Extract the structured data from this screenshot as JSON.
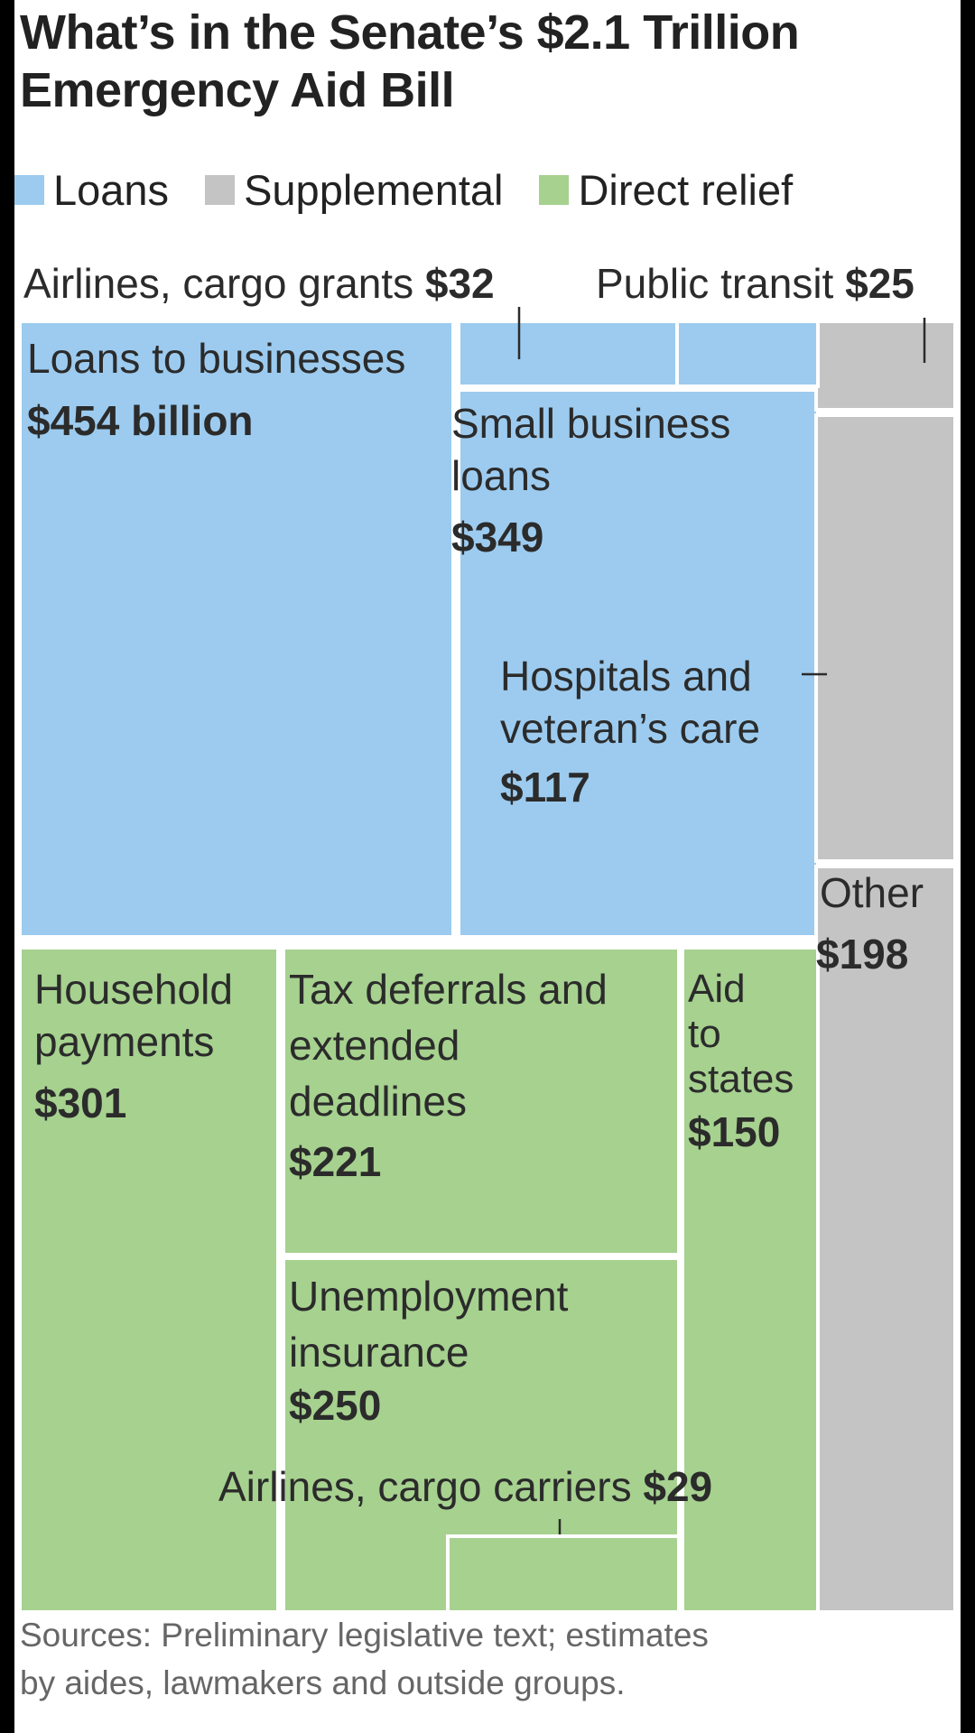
{
  "title_line1": "What’s in the Senate’s $2.1 Trillion",
  "title_line2": "Emergency Aid Bill",
  "legend": [
    {
      "label": "Loans",
      "color": "#9ccbef"
    },
    {
      "label": "Supplemental",
      "color": "#c4c4c4"
    },
    {
      "label": "Direct relief",
      "color": "#a6d18f"
    }
  ],
  "source_line1": "Sources: Preliminary legislative text; estimates",
  "source_line2": "by aides, lawmakers and outside groups.",
  "chart_data": {
    "type": "treemap",
    "title": "What’s in the Senate’s $2.1 Trillion Emergency Aid Bill",
    "unit": "billion dollars",
    "items": [
      {
        "name": "Loans to businesses",
        "value": 454,
        "category": "Loans",
        "label_lines": [
          "Loans to businesses"
        ],
        "value_label": "$454 billion"
      },
      {
        "name": "Small business loans",
        "value": 349,
        "category": "Loans",
        "label_lines": [
          "Small business",
          "loans"
        ],
        "value_label": "$349"
      },
      {
        "name": "Airlines, cargo grants",
        "value": 32,
        "category": "Loans",
        "label_lines": [
          "Airlines, cargo grants"
        ],
        "value_label": "$32"
      },
      {
        "name": "Public transit",
        "value": 25,
        "category": "Supplemental",
        "label_lines": [
          "Public transit"
        ],
        "value_label": "$25"
      },
      {
        "name": "Hospitals and veteran’s care",
        "value": 117,
        "category": "Supplemental",
        "label_lines": [
          "Hospitals and",
          "veteran’s care"
        ],
        "value_label": "$117"
      },
      {
        "name": "Other",
        "value": 198,
        "category": "Supplemental",
        "label_lines": [
          "Other"
        ],
        "value_label": "$198"
      },
      {
        "name": "Household payments",
        "value": 301,
        "category": "Direct relief",
        "label_lines": [
          "Household",
          "payments"
        ],
        "value_label": "$301"
      },
      {
        "name": "Tax deferrals and extended deadlines",
        "value": 221,
        "category": "Direct relief",
        "label_lines": [
          "Tax deferrals and",
          "extended",
          "deadlines"
        ],
        "value_label": "$221"
      },
      {
        "name": "Aid to states",
        "value": 150,
        "category": "Direct relief",
        "label_lines": [
          "Aid",
          "to",
          "states"
        ],
        "value_label": "$150"
      },
      {
        "name": "Unemployment insurance",
        "value": 250,
        "category": "Direct relief",
        "label_lines": [
          "Unemployment",
          "insurance"
        ],
        "value_label": "$250"
      },
      {
        "name": "Airlines, cargo carriers",
        "value": 29,
        "category": "Direct relief",
        "label_lines": [
          "Airlines, cargo carriers"
        ],
        "value_label": "$29"
      }
    ]
  }
}
